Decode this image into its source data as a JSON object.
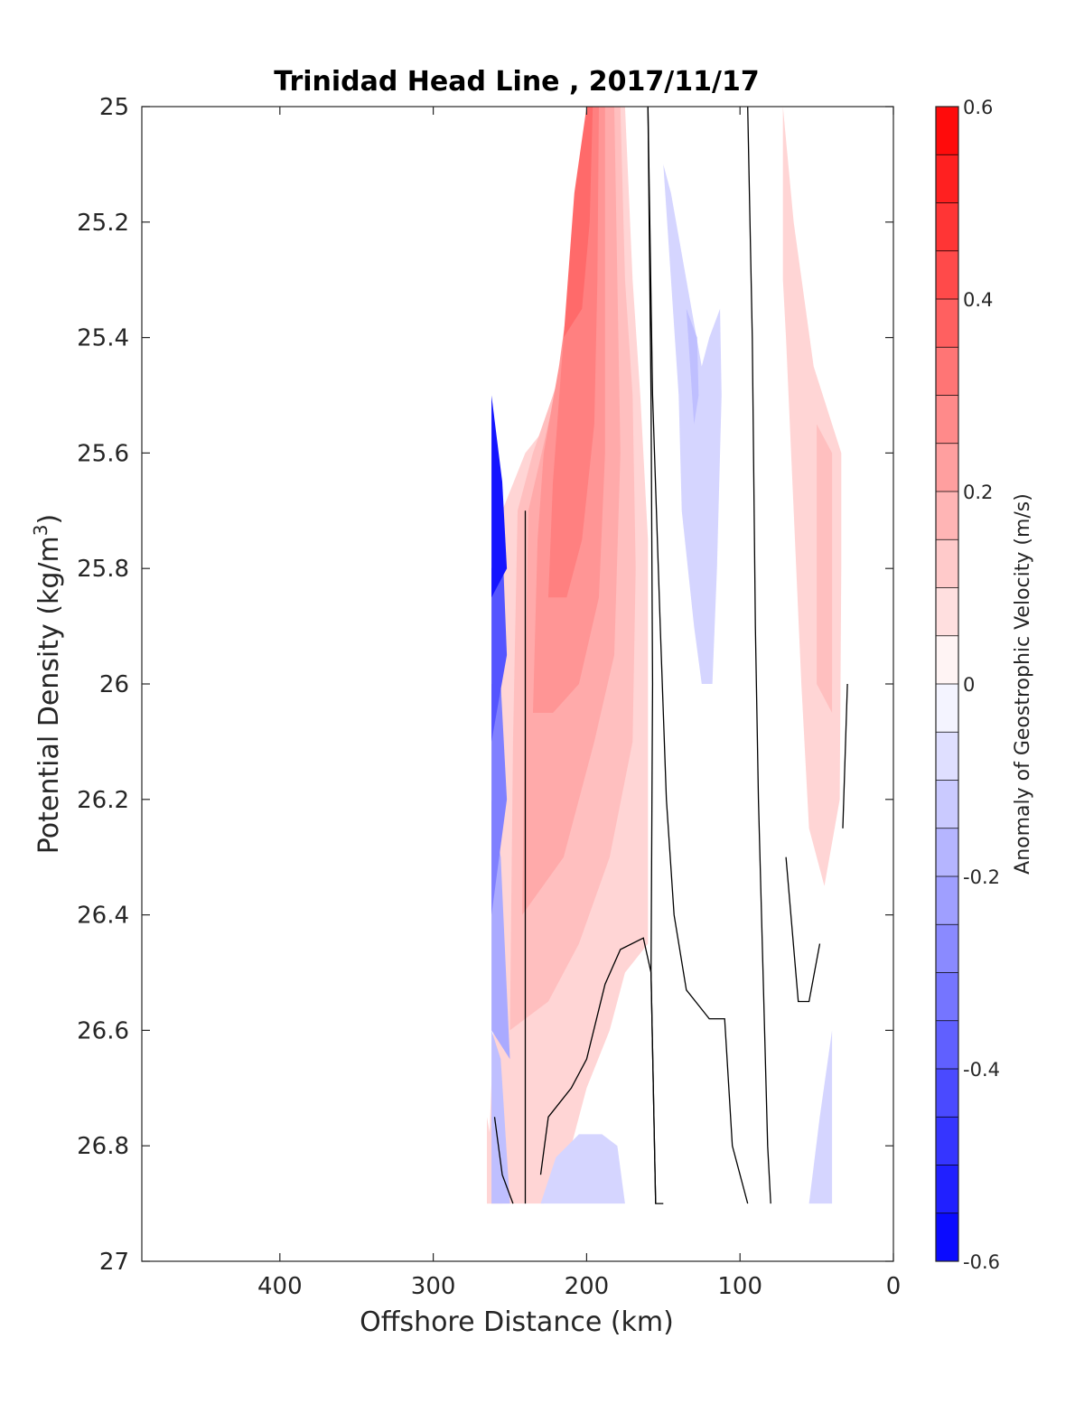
{
  "chart_data": {
    "type": "contour",
    "title": "Trinidad Head Line , 2017/11/17",
    "xlabel": "Offshore Distance (km)",
    "ylabel": "Potential Density (kg/m",
    "ylabel_superscript": "3",
    "ylabel_suffix": ")",
    "xlim": [
      490,
      0
    ],
    "ylim": [
      25,
      27
    ],
    "xticks": [
      400,
      300,
      200,
      100,
      0
    ],
    "yticks": [
      25,
      25.2,
      25.4,
      25.6,
      25.8,
      26,
      26.2,
      26.4,
      26.6,
      26.8,
      27
    ],
    "xtick_labels": [
      "400",
      "300",
      "200",
      "100",
      "0"
    ],
    "ytick_labels": [
      "25",
      "25.2",
      "25.4",
      "25.6",
      "25.8",
      "26",
      "26.2",
      "26.4",
      "26.6",
      "26.8",
      "27"
    ],
    "colorbar": {
      "label": "Anomaly of Geostrophic Velocity (m/s)",
      "range": [
        -0.6,
        0.6
      ],
      "step": 0.05,
      "ticks": [
        0.6,
        0.4,
        0.2,
        0,
        -0.2,
        -0.4,
        -0.6
      ],
      "tick_labels": [
        "0.6",
        "0.4",
        "0.2",
        "0",
        "-0.2",
        "-0.4",
        "-0.6"
      ],
      "negative_color": "#0000ff",
      "positive_color": "#ff0000"
    },
    "filled_regions": [
      {
        "value": 0.1,
        "points": [
          [
            265,
            26.9
          ],
          [
            260,
            26.55
          ],
          [
            255,
            25.7
          ],
          [
            240,
            25.6
          ],
          [
            225,
            25.55
          ],
          [
            210,
            25.4
          ],
          [
            200,
            25.2
          ],
          [
            196,
            25
          ],
          [
            175,
            25
          ],
          [
            170,
            25.3
          ],
          [
            165,
            25.5
          ],
          [
            160,
            25.75
          ],
          [
            160,
            26.2
          ],
          [
            160,
            26.45
          ],
          [
            175,
            26.5
          ],
          [
            185,
            26.6
          ],
          [
            200,
            26.7
          ],
          [
            215,
            26.85
          ],
          [
            228,
            26.9
          ]
        ]
      },
      {
        "value": 0.15,
        "points": [
          [
            250,
            26.6
          ],
          [
            248,
            26.1
          ],
          [
            245,
            25.7
          ],
          [
            235,
            25.6
          ],
          [
            222,
            25.5
          ],
          [
            210,
            25.4
          ],
          [
            198,
            25.2
          ],
          [
            196,
            25
          ],
          [
            178,
            25
          ],
          [
            175,
            25.3
          ],
          [
            170,
            25.5
          ],
          [
            168,
            25.8
          ],
          [
            170,
            26.1
          ],
          [
            185,
            26.3
          ],
          [
            205,
            26.45
          ],
          [
            225,
            26.55
          ]
        ]
      },
      {
        "value": 0.2,
        "points": [
          [
            242,
            26.4
          ],
          [
            240,
            26.0
          ],
          [
            238,
            25.7
          ],
          [
            225,
            25.55
          ],
          [
            212,
            25.4
          ],
          [
            200,
            25.2
          ],
          [
            196,
            25
          ],
          [
            182,
            25
          ],
          [
            180,
            25.3
          ],
          [
            178,
            25.6
          ],
          [
            182,
            25.95
          ],
          [
            195,
            26.1
          ],
          [
            215,
            26.3
          ]
        ]
      },
      {
        "value": 0.25,
        "points": [
          [
            235,
            26.05
          ],
          [
            232,
            25.75
          ],
          [
            228,
            25.6
          ],
          [
            218,
            25.45
          ],
          [
            205,
            25.2
          ],
          [
            196,
            25
          ],
          [
            188,
            25
          ],
          [
            188,
            25.3
          ],
          [
            188,
            25.6
          ],
          [
            192,
            25.85
          ],
          [
            205,
            26.0
          ],
          [
            222,
            26.05
          ]
        ]
      },
      {
        "value": 0.3,
        "points": [
          [
            225,
            25.85
          ],
          [
            222,
            25.65
          ],
          [
            215,
            25.4
          ],
          [
            205,
            25.2
          ],
          [
            198,
            25
          ],
          [
            192,
            25
          ],
          [
            193,
            25.3
          ],
          [
            195,
            25.55
          ],
          [
            203,
            25.75
          ],
          [
            213,
            25.85
          ]
        ]
      },
      {
        "value": 0.35,
        "points": [
          [
            215,
            25.4
          ],
          [
            208,
            25.15
          ],
          [
            200,
            25
          ],
          [
            196,
            25
          ],
          [
            198,
            25.2
          ],
          [
            203,
            25.35
          ]
        ]
      },
      {
        "value": 0.1,
        "points": [
          [
            72,
            25
          ],
          [
            65,
            25.2
          ],
          [
            52,
            25.45
          ],
          [
            40,
            25.55
          ],
          [
            34,
            25.6
          ],
          [
            34,
            25.8
          ],
          [
            35,
            26.2
          ],
          [
            45,
            26.35
          ],
          [
            55,
            26.25
          ],
          [
            60,
            26.0
          ],
          [
            65,
            25.7
          ],
          [
            70,
            25.4
          ],
          [
            72,
            25.3
          ]
        ]
      },
      {
        "value": 0.15,
        "points": [
          [
            50,
            25.55
          ],
          [
            50,
            26.0
          ],
          [
            40,
            26.05
          ],
          [
            40,
            25.6
          ]
        ]
      },
      {
        "value": 0.1,
        "points": [
          [
            265,
            26.9
          ],
          [
            265,
            26.75
          ],
          [
            255,
            26.9
          ]
        ]
      },
      {
        "value": -0.1,
        "points": [
          [
            150,
            25.1
          ],
          [
            145,
            25.3
          ],
          [
            140,
            25.5
          ],
          [
            138,
            25.7
          ],
          [
            130,
            25.9
          ],
          [
            125,
            26.0
          ],
          [
            118,
            26.0
          ],
          [
            115,
            25.8
          ],
          [
            112,
            25.5
          ],
          [
            113,
            25.35
          ],
          [
            120,
            25.4
          ],
          [
            125,
            25.45
          ],
          [
            135,
            25.3
          ],
          [
            145,
            25.15
          ]
        ]
      },
      {
        "value": -0.15,
        "points": [
          [
            135,
            25.35
          ],
          [
            130,
            25.55
          ],
          [
            127,
            25.5
          ],
          [
            128,
            25.4
          ]
        ]
      },
      {
        "value": -0.1,
        "points": [
          [
            230,
            26.9
          ],
          [
            220,
            26.82
          ],
          [
            205,
            26.78
          ],
          [
            190,
            26.78
          ],
          [
            180,
            26.8
          ],
          [
            175,
            26.9
          ]
        ]
      },
      {
        "value": -0.1,
        "points": [
          [
            55,
            26.9
          ],
          [
            48,
            26.75
          ],
          [
            40,
            26.6
          ],
          [
            40,
            26.9
          ]
        ]
      },
      {
        "value": -0.15,
        "points": [
          [
            262,
            26.9
          ],
          [
            262,
            26.6
          ],
          [
            256,
            26.65
          ],
          [
            250,
            26.9
          ]
        ]
      },
      {
        "value": -0.2,
        "points": [
          [
            262,
            26.6
          ],
          [
            262,
            26.2
          ],
          [
            256,
            26.3
          ],
          [
            250,
            26.65
          ]
        ]
      },
      {
        "value": -0.3,
        "points": [
          [
            262,
            26.4
          ],
          [
            262,
            26.0
          ],
          [
            256,
            26.0
          ],
          [
            252,
            26.2
          ]
        ]
      },
      {
        "value": -0.4,
        "points": [
          [
            262,
            26.1
          ],
          [
            262,
            25.8
          ],
          [
            255,
            25.75
          ],
          [
            252,
            25.95
          ]
        ]
      },
      {
        "value": -0.55,
        "points": [
          [
            262,
            25.5
          ],
          [
            255,
            25.65
          ],
          [
            252,
            25.8
          ],
          [
            262,
            25.85
          ]
        ]
      }
    ],
    "zero_contours": [
      [
        [
          240,
          25.7
        ],
        [
          240,
          26.5
        ],
        [
          240,
          26.9
        ]
      ],
      [
        [
          260,
          26.75
        ],
        [
          255,
          26.85
        ],
        [
          248,
          26.9
        ]
      ],
      [
        [
          160,
          25
        ],
        [
          158,
          25.5
        ],
        [
          157,
          26.0
        ],
        [
          158,
          26.5
        ],
        [
          155,
          26.9
        ],
        [
          150,
          26.9
        ]
      ],
      [
        [
          230,
          26.85
        ],
        [
          225,
          26.75
        ],
        [
          210,
          26.7
        ],
        [
          200,
          26.65
        ],
        [
          188,
          26.52
        ],
        [
          178,
          26.46
        ],
        [
          163,
          26.44
        ],
        [
          158,
          26.5
        ],
        [
          155,
          26.9
        ]
      ],
      [
        [
          160,
          25
        ],
        [
          157,
          25.5
        ],
        [
          152,
          25.9
        ],
        [
          148,
          26.2
        ],
        [
          143,
          26.4
        ],
        [
          135,
          26.53
        ],
        [
          120,
          26.58
        ],
        [
          110,
          26.58
        ],
        [
          105,
          26.8
        ],
        [
          95,
          26.9
        ]
      ],
      [
        [
          95,
          25
        ],
        [
          92,
          25.4
        ],
        [
          90,
          25.9
        ],
        [
          88,
          26.2
        ],
        [
          85,
          26.5
        ],
        [
          82,
          26.8
        ],
        [
          80,
          26.9
        ]
      ],
      [
        [
          30,
          26.0
        ],
        [
          33,
          26.25
        ]
      ],
      [
        [
          70,
          26.3
        ],
        [
          62,
          26.55
        ],
        [
          55,
          26.55
        ],
        [
          48,
          26.45
        ]
      ]
    ]
  }
}
